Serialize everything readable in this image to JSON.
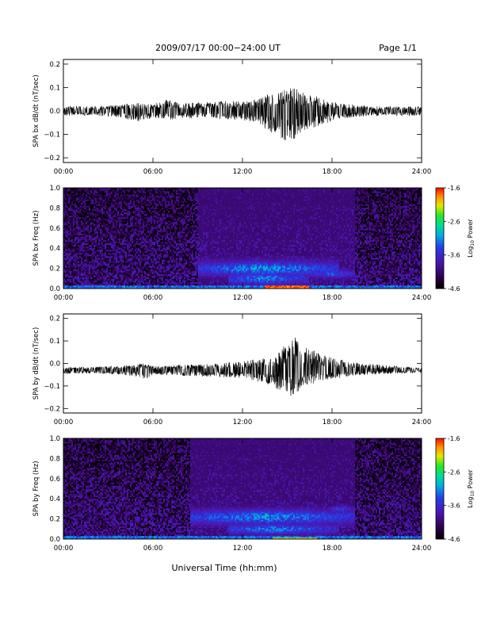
{
  "header": {
    "title": "2009/07/17  00:00−24:00 UT",
    "page": "Page 1/1"
  },
  "footer": {
    "xlabel": "Universal Time (hh:mm)"
  },
  "chart_data": [
    {
      "type": "line",
      "ylabel": "SPA bx dB/dt (nT/sec)",
      "xlim": [
        0,
        24
      ],
      "ylim": [
        -0.22,
        0.22
      ],
      "x_ticks": [
        "00:00",
        "06:00",
        "12:00",
        "18:00",
        "24:00"
      ],
      "y_ticks": [
        "0.2",
        "0.1",
        "0.0",
        "−0.1",
        "−0.2"
      ],
      "y_tick_values": [
        0.2,
        0.1,
        0.0,
        -0.1,
        -0.2
      ],
      "baseline": 0.0,
      "envelope": {
        "hours": [
          0,
          2,
          3.5,
          5,
          5.5,
          6,
          7,
          7.5,
          8,
          10,
          11,
          12,
          13,
          14,
          15,
          15.5,
          16,
          17,
          17.5,
          18,
          19,
          20,
          21,
          22,
          24
        ],
        "upper": [
          0.02,
          0.02,
          0.025,
          0.035,
          0.03,
          0.03,
          0.05,
          0.04,
          0.035,
          0.04,
          0.045,
          0.04,
          0.05,
          0.08,
          0.1,
          0.1,
          0.08,
          0.07,
          0.05,
          0.04,
          0.03,
          0.025,
          0.02,
          0.02,
          0.02
        ],
        "lower": [
          -0.02,
          -0.02,
          -0.025,
          -0.045,
          -0.035,
          -0.03,
          -0.04,
          -0.035,
          -0.03,
          -0.035,
          -0.04,
          -0.04,
          -0.05,
          -0.1,
          -0.14,
          -0.12,
          -0.09,
          -0.07,
          -0.06,
          -0.04,
          -0.03,
          -0.025,
          -0.02,
          -0.02,
          -0.02
        ]
      }
    },
    {
      "type": "heatmap",
      "ylabel": "SPA bx Freq (Hz)",
      "xlim": [
        0,
        24
      ],
      "ylim": [
        0,
        1.0
      ],
      "x_ticks": [
        "00:00",
        "06:00",
        "12:00",
        "18:00",
        "24:00"
      ],
      "y_ticks": [
        "1.0",
        "0.8",
        "0.6",
        "0.4",
        "0.2",
        "0.0"
      ],
      "y_tick_values": [
        1.0,
        0.8,
        0.6,
        0.4,
        0.2,
        0.0
      ],
      "colorbar": {
        "label": "Log10 Power",
        "label_main": "Log",
        "label_sub": "10",
        "label_tail": " Power",
        "ticks": [
          "-1.6",
          "-2.6",
          "-3.6",
          "-4.6"
        ],
        "tick_values": [
          -1.6,
          -2.6,
          -3.6,
          -4.6
        ],
        "range": [
          -4.6,
          -1.6
        ]
      },
      "background_level": -4.1,
      "features": [
        {
          "kind": "band",
          "t0": 9.0,
          "t1": 18.5,
          "f_center": 0.2,
          "f_width": 0.07,
          "peak": -3.0,
          "t_peak": 13.5
        },
        {
          "kind": "band",
          "t0": 11.0,
          "t1": 16.5,
          "f_center": 0.1,
          "f_width": 0.06,
          "peak": -3.1,
          "t_peak": 13.5
        },
        {
          "kind": "band",
          "t0": 16.5,
          "t1": 19.5,
          "f_center": 0.15,
          "f_width": 0.04,
          "peak": -3.3,
          "t_peak": 18
        },
        {
          "kind": "floor",
          "t0": 0.0,
          "t1": 24.0,
          "f_max": 0.03,
          "peak": -3.0
        },
        {
          "kind": "spot",
          "t0": 13.5,
          "t1": 16.5,
          "f_max": 0.03,
          "peak": -1.6
        }
      ]
    },
    {
      "type": "line",
      "ylabel": "SPA by dB/dt (nT/sec)",
      "xlim": [
        0,
        24
      ],
      "ylim": [
        -0.22,
        0.22
      ],
      "x_ticks": [
        "00:00",
        "06:00",
        "12:00",
        "18:00",
        "24:00"
      ],
      "y_ticks": [
        "0.2",
        "0.1",
        "0.0",
        "−0.1",
        "−0.2"
      ],
      "y_tick_values": [
        0.2,
        0.1,
        0.0,
        -0.1,
        -0.2
      ],
      "baseline": -0.03,
      "envelope": {
        "hours": [
          0,
          2,
          4,
          5,
          5.5,
          6,
          7,
          8,
          10,
          12,
          13,
          14,
          14.5,
          15,
          15.5,
          16,
          16.5,
          17,
          18,
          19,
          20,
          22,
          24
        ],
        "upper": [
          -0.015,
          -0.015,
          -0.01,
          0.0,
          0.0,
          -0.01,
          -0.01,
          -0.005,
          0.0,
          0.01,
          0.02,
          0.03,
          0.06,
          0.09,
          0.12,
          0.08,
          0.07,
          0.05,
          0.03,
          0.01,
          0.0,
          -0.01,
          -0.02
        ],
        "lower": [
          -0.045,
          -0.045,
          -0.05,
          -0.06,
          -0.07,
          -0.05,
          -0.05,
          -0.055,
          -0.06,
          -0.065,
          -0.08,
          -0.1,
          -0.13,
          -0.15,
          -0.14,
          -0.11,
          -0.1,
          -0.08,
          -0.07,
          -0.06,
          -0.05,
          -0.045,
          -0.04
        ]
      }
    },
    {
      "type": "heatmap",
      "ylabel": "SPA by Freq (Hz)",
      "xlim": [
        0,
        24
      ],
      "ylim": [
        0,
        1.0
      ],
      "x_ticks": [
        "00:00",
        "06:00",
        "12:00",
        "18:00",
        "24:00"
      ],
      "y_ticks": [
        "1.0",
        "0.8",
        "0.6",
        "0.4",
        "0.2",
        "0.0"
      ],
      "y_tick_values": [
        1.0,
        0.8,
        0.6,
        0.4,
        0.2,
        0.0
      ],
      "colorbar": {
        "label": "Log10 Power",
        "label_main": "Log",
        "label_sub": "10",
        "label_tail": " Power",
        "ticks": [
          "-1.6",
          "-2.6",
          "-3.6",
          "-4.6"
        ],
        "tick_values": [
          -1.6,
          -2.6,
          -3.6,
          -4.6
        ],
        "range": [
          -4.6,
          -1.6
        ]
      },
      "background_level": -4.1,
      "features": [
        {
          "kind": "band",
          "t0": 8.5,
          "t1": 19.5,
          "f_center": 0.22,
          "f_width": 0.07,
          "peak": -3.0,
          "t_peak": 13.5
        },
        {
          "kind": "band",
          "t0": 11.0,
          "t1": 18.5,
          "f_center": 0.1,
          "f_width": 0.05,
          "peak": -3.1,
          "t_peak": 14
        },
        {
          "kind": "band",
          "t0": 18.0,
          "t1": 19.5,
          "f_center": 0.3,
          "f_width": 0.03,
          "peak": -3.4,
          "t_peak": 18.5
        },
        {
          "kind": "floor",
          "t0": 0.0,
          "t1": 24.0,
          "f_max": 0.03,
          "peak": -3.0
        },
        {
          "kind": "spot",
          "t0": 14.0,
          "t1": 17.0,
          "f_max": 0.02,
          "peak": -2.0
        }
      ]
    }
  ]
}
